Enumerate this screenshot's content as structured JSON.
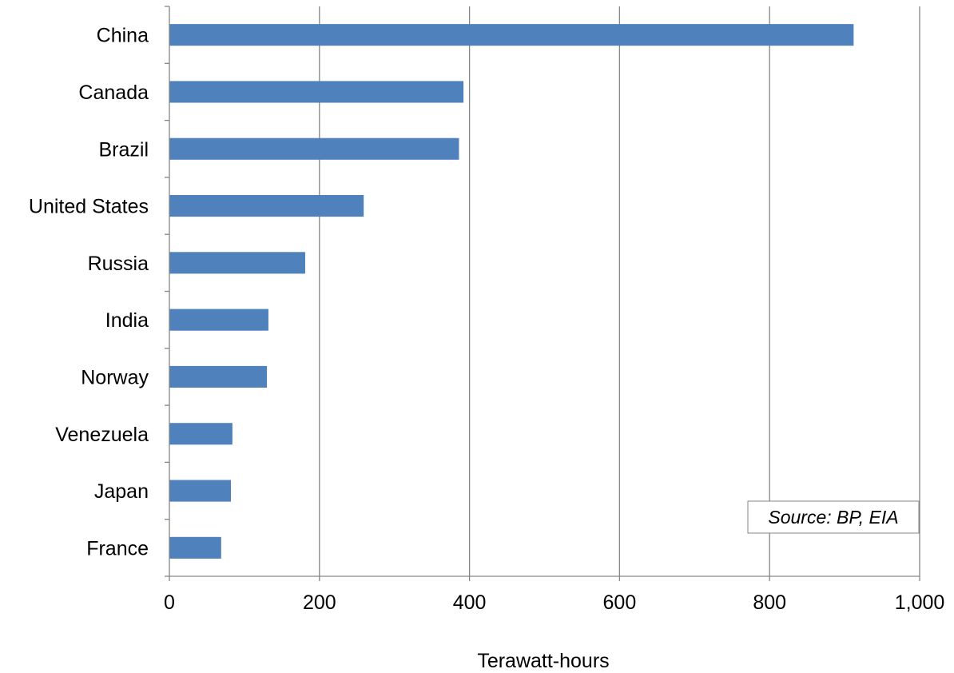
{
  "chart_data": {
    "type": "bar",
    "orientation": "horizontal",
    "categories": [
      "China",
      "Canada",
      "Brazil",
      "United States",
      "Russia",
      "India",
      "Norway",
      "Venezuela",
      "Japan",
      "France"
    ],
    "values": [
      912,
      392,
      386,
      259,
      181,
      132,
      130,
      84,
      82,
      69
    ],
    "title": "",
    "xlabel": "Terawatt-hours",
    "ylabel": "",
    "xlim": [
      0,
      1000
    ],
    "xticks": [
      0,
      200,
      400,
      600,
      800,
      1000
    ],
    "xtick_labels": [
      "0",
      "200",
      "400",
      "600",
      "800",
      "1,000"
    ],
    "grid": "vertical major gridlines",
    "annotation": "Source: BP, EIA",
    "bar_color": "#4F81BD",
    "grid_color": "#868686"
  }
}
